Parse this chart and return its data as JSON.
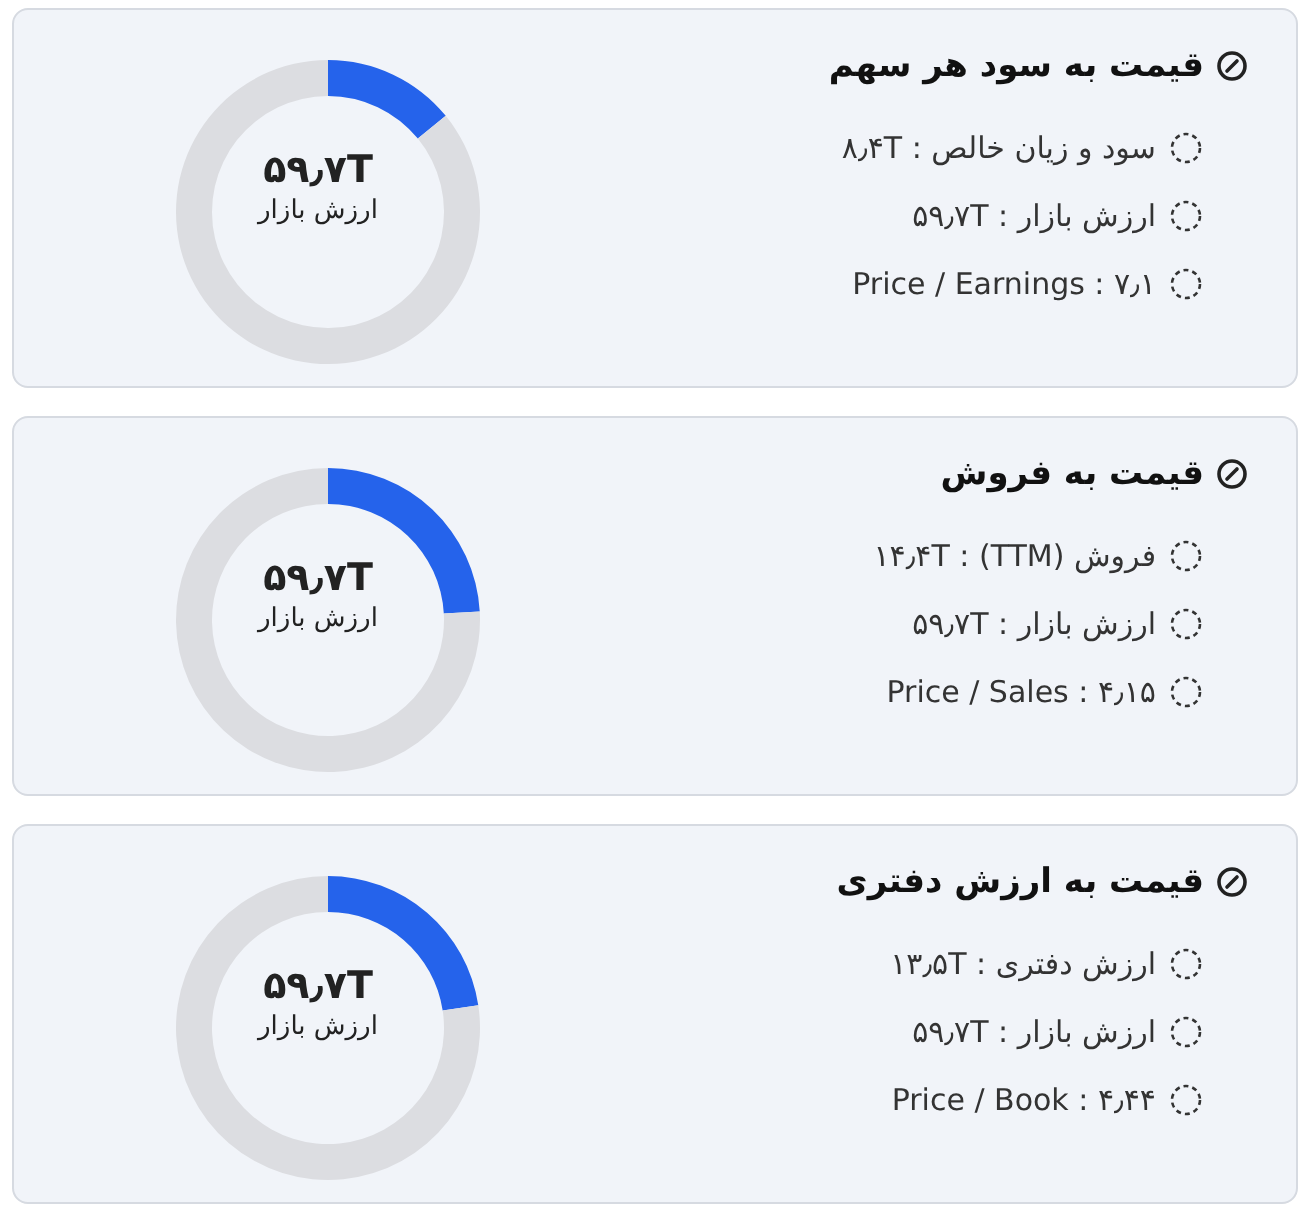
{
  "chart_data": [
    {
      "type": "donut",
      "title": "قیمت به سود هر سهم",
      "categories": [
        null,
        null
      ],
      "values": [
        14.1,
        85.9
      ],
      "colors": [
        "#2563eb",
        "#dcdde1"
      ],
      "annotations": [
        "۵۹٫۷T",
        "ارزش بازار",
        "سود و زیان خالص : ۸٫۴T",
        "ارزش بازار : ۵۹٫۷T",
        "Price / Earnings : ۷٫۱"
      ]
    },
    {
      "type": "donut",
      "title": "قیمت به فروش",
      "categories": [
        null,
        null
      ],
      "values": [
        24.1,
        75.9
      ],
      "colors": [
        "#2563eb",
        "#dcdde1"
      ],
      "annotations": [
        "۵۹٫۷T",
        "ارزش بازار",
        "فروش (TTM) : ۱۴٫۴T",
        "ارزش بازار : ۵۹٫۷T",
        "Price / Sales : ۴٫۱۵"
      ]
    },
    {
      "type": "donut",
      "title": "قیمت به ارزش دفتری",
      "categories": [
        null,
        null
      ],
      "values": [
        22.6,
        77.4
      ],
      "colors": [
        "#2563eb",
        "#dcdde1"
      ],
      "annotations": [
        "۵۹٫۷T",
        "ارزش بازار",
        "ارزش دفتری : ۱۳٫۵T",
        "ارزش بازار : ۵۹٫۷T",
        "Price / Book : ۴٫۴۴"
      ]
    }
  ]
}
